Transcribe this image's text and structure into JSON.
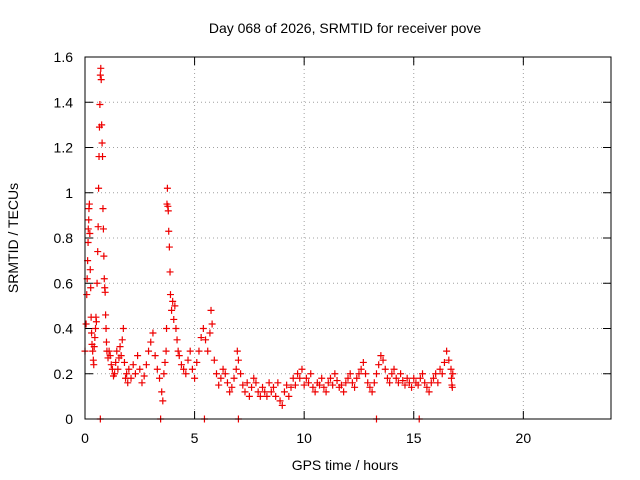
{
  "chart_data": {
    "type": "scatter",
    "title": "Day 068 of 2026, SRMTID for receiver pove",
    "xlabel": "GPS time / hours",
    "ylabel": "SRMTID / TECUs",
    "xlim": [
      0,
      24
    ],
    "ylim": [
      0,
      1.6
    ],
    "xticks": [
      0,
      5,
      10,
      15,
      20
    ],
    "xtick_labels": [
      "0",
      "5",
      "10",
      "15",
      "20"
    ],
    "yticks": [
      0,
      0.2,
      0.4,
      0.6,
      0.8,
      1.0,
      1.2,
      1.4,
      1.6
    ],
    "ytick_labels": [
      "0",
      "0.2",
      "0.4",
      "0.6",
      "0.8",
      "1",
      "1.2",
      "1.4",
      "1.6"
    ],
    "grid": true,
    "marker": "+",
    "colors": {
      "series": "#ee0000",
      "grid": "#a0a0a0",
      "axis": "#000000"
    },
    "series": [
      {
        "points": [
          [
            0.0,
            0.3
          ],
          [
            0.05,
            0.42
          ],
          [
            0.08,
            0.55
          ],
          [
            0.1,
            0.62
          ],
          [
            0.12,
            0.7
          ],
          [
            0.14,
            0.78
          ],
          [
            0.15,
            0.84
          ],
          [
            0.17,
            0.88
          ],
          [
            0.18,
            0.93
          ],
          [
            0.2,
            0.95
          ],
          [
            0.22,
            0.82
          ],
          [
            0.24,
            0.66
          ],
          [
            0.26,
            0.58
          ],
          [
            0.28,
            0.45
          ],
          [
            0.3,
            0.38
          ],
          [
            0.32,
            0.33
          ],
          [
            0.35,
            0.3
          ],
          [
            0.38,
            0.26
          ],
          [
            0.4,
            0.24
          ],
          [
            0.42,
            0.32
          ],
          [
            0.45,
            0.36
          ],
          [
            0.48,
            0.4
          ],
          [
            0.5,
            0.45
          ],
          [
            0.52,
            0.43
          ],
          [
            0.55,
            0.6
          ],
          [
            0.58,
            0.74
          ],
          [
            0.6,
            0.85
          ],
          [
            0.62,
            1.02
          ],
          [
            0.64,
            1.16
          ],
          [
            0.66,
            1.29
          ],
          [
            0.68,
            1.39
          ],
          [
            0.7,
            1.52
          ],
          [
            0.72,
            1.55
          ],
          [
            0.74,
            1.5
          ],
          [
            0.76,
            1.3
          ],
          [
            0.78,
            1.22
          ],
          [
            0.8,
            1.16
          ],
          [
            0.82,
            0.93
          ],
          [
            0.84,
            0.84
          ],
          [
            0.86,
            0.72
          ],
          [
            0.88,
            0.62
          ],
          [
            0.9,
            0.58
          ],
          [
            0.92,
            0.56
          ],
          [
            0.94,
            0.46
          ],
          [
            0.96,
            0.4
          ],
          [
            0.98,
            0.34
          ],
          [
            1.0,
            0.3
          ],
          [
            1.05,
            0.27
          ],
          [
            1.1,
            0.3
          ],
          [
            1.15,
            0.28
          ],
          [
            1.2,
            0.24
          ],
          [
            1.25,
            0.22
          ],
          [
            1.3,
            0.19
          ],
          [
            1.35,
            0.2
          ],
          [
            1.4,
            0.25
          ],
          [
            1.45,
            0.3
          ],
          [
            1.5,
            0.22
          ],
          [
            1.55,
            0.27
          ],
          [
            1.6,
            0.32
          ],
          [
            1.65,
            0.28
          ],
          [
            1.7,
            0.35
          ],
          [
            1.75,
            0.4
          ],
          [
            1.8,
            0.25
          ],
          [
            1.85,
            0.18
          ],
          [
            1.9,
            0.2
          ],
          [
            1.95,
            0.16
          ],
          [
            2.0,
            0.22
          ],
          [
            2.1,
            0.18
          ],
          [
            2.2,
            0.24
          ],
          [
            2.3,
            0.2
          ],
          [
            2.4,
            0.28
          ],
          [
            2.5,
            0.22
          ],
          [
            2.6,
            0.16
          ],
          [
            2.7,
            0.19
          ],
          [
            2.8,
            0.24
          ],
          [
            2.9,
            0.3
          ],
          [
            3.0,
            0.34
          ],
          [
            3.1,
            0.38
          ],
          [
            3.2,
            0.28
          ],
          [
            3.3,
            0.22
          ],
          [
            3.4,
            0.18
          ],
          [
            3.5,
            0.12
          ],
          [
            3.55,
            0.08
          ],
          [
            3.6,
            0.2
          ],
          [
            3.65,
            0.25
          ],
          [
            3.7,
            0.3
          ],
          [
            3.72,
            0.4
          ],
          [
            3.74,
            0.95
          ],
          [
            3.76,
            1.02
          ],
          [
            3.78,
            0.94
          ],
          [
            3.8,
            0.92
          ],
          [
            3.82,
            0.83
          ],
          [
            3.85,
            0.76
          ],
          [
            3.88,
            0.65
          ],
          [
            3.9,
            0.55
          ],
          [
            3.95,
            0.48
          ],
          [
            4.0,
            0.52
          ],
          [
            4.05,
            0.44
          ],
          [
            4.1,
            0.5
          ],
          [
            4.15,
            0.4
          ],
          [
            4.2,
            0.35
          ],
          [
            4.25,
            0.3
          ],
          [
            4.3,
            0.28
          ],
          [
            4.4,
            0.24
          ],
          [
            4.5,
            0.22
          ],
          [
            4.6,
            0.2
          ],
          [
            4.7,
            0.26
          ],
          [
            4.8,
            0.3
          ],
          [
            4.9,
            0.22
          ],
          [
            5.0,
            0.18
          ],
          [
            5.1,
            0.25
          ],
          [
            5.2,
            0.3
          ],
          [
            5.3,
            0.36
          ],
          [
            5.4,
            0.4
          ],
          [
            5.5,
            0.35
          ],
          [
            5.6,
            0.3
          ],
          [
            5.7,
            0.38
          ],
          [
            5.75,
            0.48
          ],
          [
            5.8,
            0.42
          ],
          [
            5.9,
            0.26
          ],
          [
            6.0,
            0.2
          ],
          [
            6.1,
            0.15
          ],
          [
            6.2,
            0.18
          ],
          [
            6.3,
            0.22
          ],
          [
            6.4,
            0.2
          ],
          [
            6.5,
            0.16
          ],
          [
            6.6,
            0.12
          ],
          [
            6.7,
            0.14
          ],
          [
            6.8,
            0.18
          ],
          [
            6.9,
            0.22
          ],
          [
            6.95,
            0.3
          ],
          [
            7.0,
            0.26
          ],
          [
            7.1,
            0.2
          ],
          [
            7.2,
            0.15
          ],
          [
            7.3,
            0.12
          ],
          [
            7.4,
            0.16
          ],
          [
            7.5,
            0.1
          ],
          [
            7.6,
            0.14
          ],
          [
            7.7,
            0.18
          ],
          [
            7.8,
            0.16
          ],
          [
            7.9,
            0.12
          ],
          [
            8.0,
            0.1
          ],
          [
            8.1,
            0.14
          ],
          [
            8.2,
            0.12
          ],
          [
            8.3,
            0.1
          ],
          [
            8.4,
            0.16
          ],
          [
            8.5,
            0.12
          ],
          [
            8.6,
            0.14
          ],
          [
            8.7,
            0.1
          ],
          [
            8.8,
            0.16
          ],
          [
            8.9,
            0.08
          ],
          [
            9.0,
            0.06
          ],
          [
            9.1,
            0.12
          ],
          [
            9.2,
            0.15
          ],
          [
            9.3,
            0.1
          ],
          [
            9.4,
            0.14
          ],
          [
            9.5,
            0.18
          ],
          [
            9.6,
            0.15
          ],
          [
            9.7,
            0.2
          ],
          [
            9.8,
            0.18
          ],
          [
            9.9,
            0.22
          ],
          [
            10.0,
            0.15
          ],
          [
            10.1,
            0.18
          ],
          [
            10.2,
            0.16
          ],
          [
            10.3,
            0.2
          ],
          [
            10.4,
            0.14
          ],
          [
            10.5,
            0.12
          ],
          [
            10.6,
            0.16
          ],
          [
            10.7,
            0.15
          ],
          [
            10.8,
            0.18
          ],
          [
            10.9,
            0.14
          ],
          [
            11.0,
            0.12
          ],
          [
            11.1,
            0.16
          ],
          [
            11.2,
            0.18
          ],
          [
            11.3,
            0.15
          ],
          [
            11.4,
            0.2
          ],
          [
            11.5,
            0.17
          ],
          [
            11.6,
            0.14
          ],
          [
            11.7,
            0.15
          ],
          [
            11.8,
            0.12
          ],
          [
            11.9,
            0.16
          ],
          [
            12.0,
            0.18
          ],
          [
            12.1,
            0.2
          ],
          [
            12.2,
            0.16
          ],
          [
            12.3,
            0.14
          ],
          [
            12.4,
            0.18
          ],
          [
            12.5,
            0.2
          ],
          [
            12.6,
            0.22
          ],
          [
            12.7,
            0.25
          ],
          [
            12.8,
            0.2
          ],
          [
            12.9,
            0.16
          ],
          [
            13.0,
            0.14
          ],
          [
            13.1,
            0.12
          ],
          [
            13.2,
            0.16
          ],
          [
            13.3,
            0.2
          ],
          [
            13.4,
            0.24
          ],
          [
            13.5,
            0.28
          ],
          [
            13.6,
            0.26
          ],
          [
            13.7,
            0.22
          ],
          [
            13.8,
            0.18
          ],
          [
            13.9,
            0.16
          ],
          [
            14.0,
            0.2
          ],
          [
            14.1,
            0.22
          ],
          [
            14.2,
            0.18
          ],
          [
            14.3,
            0.16
          ],
          [
            14.4,
            0.2
          ],
          [
            14.5,
            0.17
          ],
          [
            14.6,
            0.15
          ],
          [
            14.7,
            0.18
          ],
          [
            14.8,
            0.16
          ],
          [
            14.9,
            0.14
          ],
          [
            15.0,
            0.18
          ],
          [
            15.1,
            0.16
          ],
          [
            15.2,
            0.15
          ],
          [
            15.3,
            0.18
          ],
          [
            15.4,
            0.2
          ],
          [
            15.5,
            0.16
          ],
          [
            15.6,
            0.14
          ],
          [
            15.7,
            0.12
          ],
          [
            15.8,
            0.16
          ],
          [
            15.9,
            0.18
          ],
          [
            16.0,
            0.2
          ],
          [
            16.1,
            0.16
          ],
          [
            16.2,
            0.22
          ],
          [
            16.3,
            0.2
          ],
          [
            16.4,
            0.25
          ],
          [
            16.5,
            0.3
          ],
          [
            16.6,
            0.26
          ],
          [
            16.7,
            0.22
          ],
          [
            16.72,
            0.18
          ],
          [
            16.74,
            0.15
          ],
          [
            16.76,
            0.14
          ],
          [
            16.78,
            0.2
          ],
          [
            0.7,
            0.0
          ],
          [
            3.45,
            0.0
          ],
          [
            5.45,
            0.0
          ],
          [
            7.0,
            0.0
          ],
          [
            13.3,
            0.0
          ],
          [
            15.25,
            0.0
          ]
        ]
      }
    ]
  }
}
